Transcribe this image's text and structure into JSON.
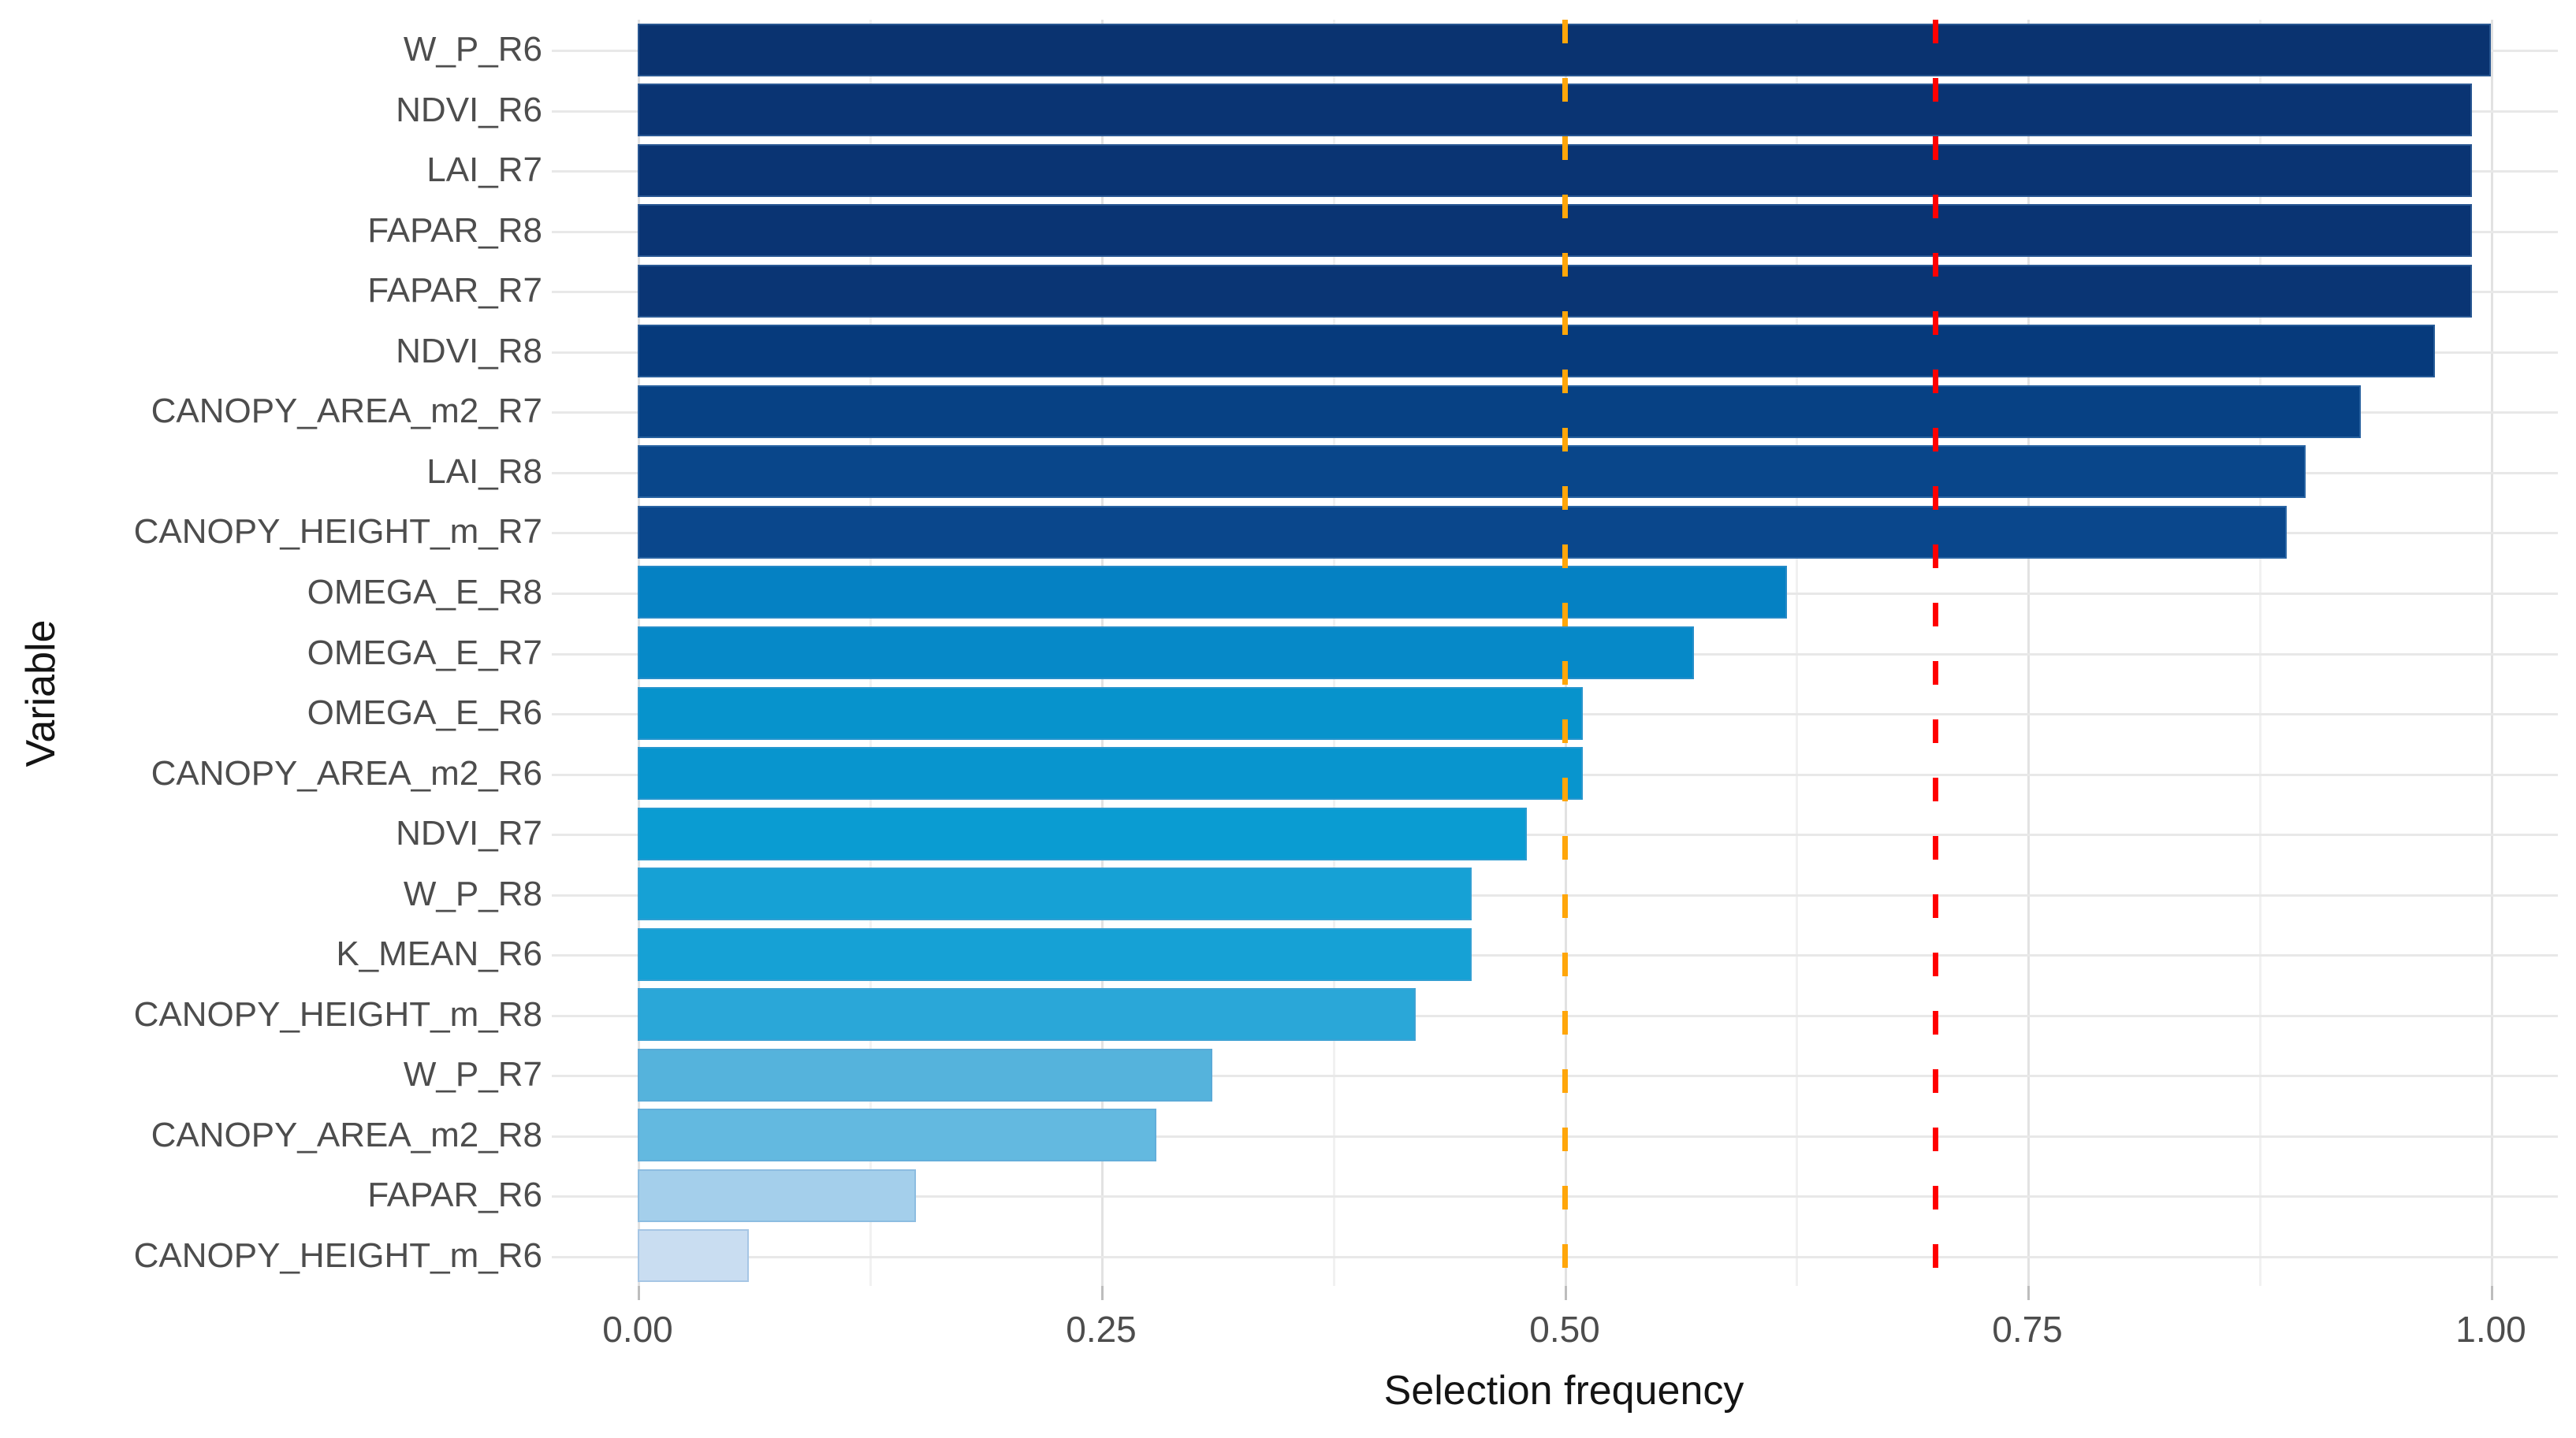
{
  "figure": {
    "background": "#ffffff"
  },
  "chart_data": {
    "type": "bar",
    "orientation": "horizontal",
    "title": "",
    "xlabel": "Selection frequency",
    "ylabel": "Variable",
    "xlim": [
      0,
      1.0
    ],
    "grid": "on",
    "legend": "none",
    "x_ticks": [
      {
        "label": "0.00",
        "value": 0.0
      },
      {
        "label": "0.25",
        "value": 0.25
      },
      {
        "label": "0.50",
        "value": 0.5
      },
      {
        "label": "0.75",
        "value": 0.75
      },
      {
        "label": "1.00",
        "value": 1.0
      }
    ],
    "minor_gridlines": [
      0.125,
      0.375,
      0.625,
      0.875
    ],
    "categories": [
      "W_P_R6",
      "NDVI_R6",
      "LAI_R7",
      "FAPAR_R8",
      "FAPAR_R7",
      "NDVI_R8",
      "CANOPY_AREA_m2_R7",
      "LAI_R8",
      "CANOPY_HEIGHT_m_R7",
      "OMEGA_E_R8",
      "OMEGA_E_R7",
      "OMEGA_E_R6",
      "CANOPY_AREA_m2_R6",
      "NDVI_R7",
      "W_P_R8",
      "K_MEAN_R6",
      "CANOPY_HEIGHT_m_R8",
      "W_P_R7",
      "CANOPY_AREA_m2_R8",
      "FAPAR_R6",
      "CANOPY_HEIGHT_m_R6"
    ],
    "values": [
      1.0,
      0.99,
      0.99,
      0.99,
      0.99,
      0.97,
      0.93,
      0.9,
      0.89,
      0.62,
      0.57,
      0.51,
      0.51,
      0.48,
      0.45,
      0.45,
      0.42,
      0.31,
      0.28,
      0.15,
      0.06
    ],
    "bar_colors": [
      "#0a3370",
      "#0a3473",
      "#0a3473",
      "#0a3473",
      "#0a3574",
      "#063a7c",
      "#074184",
      "#09468a",
      "#0a478c",
      "#0581c3",
      "#0689c8",
      "#0793cc",
      "#0895ce",
      "#0a9cd2",
      "#16a1d5",
      "#16a1d5",
      "#2aa7d8",
      "#55b3dc",
      "#63b9e0",
      "#a4cfeb",
      "#c9ddf1"
    ],
    "reference_lines": [
      {
        "name": "threshold-0.50",
        "value": 0.5,
        "color": "#FFA60A",
        "style": "dashed"
      },
      {
        "name": "threshold-0.70",
        "value": 0.7,
        "color": "#FF0000",
        "style": "dashed"
      }
    ],
    "colors": {
      "axis_text": "#4d4d4d",
      "axis_title": "#141414",
      "grid_major": "#e2e2e2",
      "grid_minor": "#f1f1f1",
      "grid_row": "#e8e8e8",
      "tick_mark": "#bdbdbd"
    }
  }
}
